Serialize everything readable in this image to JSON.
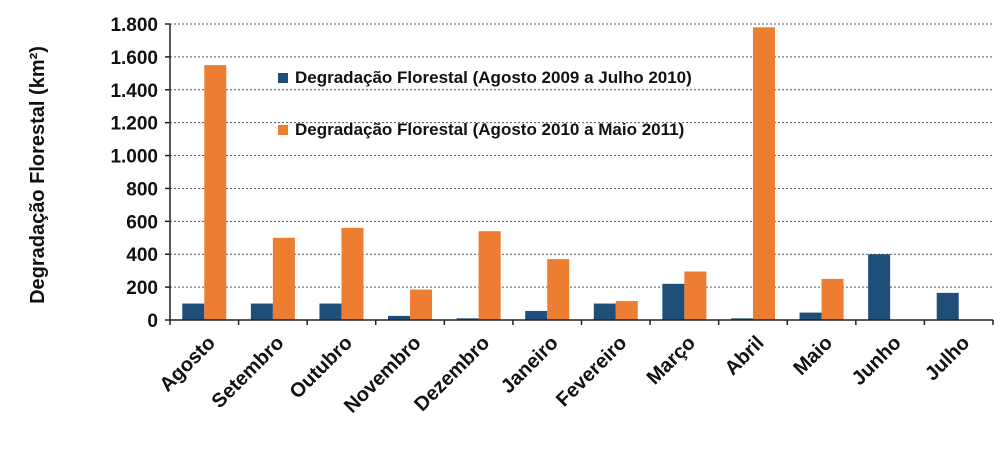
{
  "chart_data": {
    "type": "bar",
    "ylabel": "Degradação Florestal (km²)",
    "xlabel": "",
    "ylim": [
      0,
      1800
    ],
    "yticks": [
      0,
      200,
      400,
      600,
      800,
      1000,
      1200,
      1400,
      1600,
      1800
    ],
    "ytick_labels": [
      "0",
      "200",
      "400",
      "600",
      "800",
      "1.000",
      "1.200",
      "1.400",
      "1.600",
      "1.800"
    ],
    "categories": [
      "Agosto",
      "Setembro",
      "Outubro",
      "Novembro",
      "Dezembro",
      "Janeiro",
      "Fevereiro",
      "Março",
      "Abril",
      "Maio",
      "Junho",
      "Julho"
    ],
    "series": [
      {
        "name": "Degradação Florestal (Agosto 2009 a Julho 2010)",
        "color": "#1f4e79",
        "values": [
          100,
          100,
          100,
          25,
          10,
          55,
          100,
          220,
          10,
          45,
          400,
          165
        ]
      },
      {
        "name": "Degradação Florestal (Agosto 2010 a Maio 2011)",
        "color": "#ed7d31",
        "values": [
          1550,
          500,
          560,
          185,
          540,
          370,
          115,
          295,
          1780,
          250,
          null,
          null
        ]
      }
    ],
    "grid": true,
    "grid_style": "dotted",
    "legend_position": "inside-top-center"
  }
}
